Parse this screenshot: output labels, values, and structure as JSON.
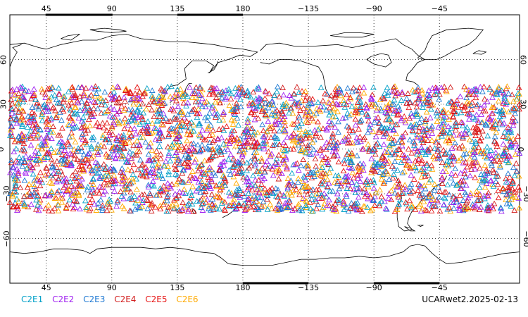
{
  "map": {
    "lon_ticks_top": [
      "45",
      "90",
      "135",
      "180",
      "−135",
      "−90",
      "−45"
    ],
    "lon_ticks_bottom": [
      "45",
      "90",
      "135",
      "180",
      "−135",
      "−90",
      "−45"
    ],
    "lat_ticks": [
      "60",
      "30",
      "0",
      "−30",
      "−60"
    ],
    "lat_tick_values": [
      60,
      30,
      0,
      -30,
      -60
    ],
    "lon_tick_values": [
      45,
      90,
      135,
      180,
      225,
      270,
      315
    ],
    "lon_range": [
      20,
      370
    ],
    "lat_range": [
      -90,
      90
    ],
    "marker": "open-triangle",
    "series": [
      {
        "name": "C2E1",
        "color": "#00a0c8"
      },
      {
        "name": "C2E2",
        "color": "#a020f0"
      },
      {
        "name": "C2E3",
        "color": "#1e78d2"
      },
      {
        "name": "C2E4",
        "color": "#d21e1e"
      },
      {
        "name": "C2E5",
        "color": "#e61414"
      },
      {
        "name": "C2E6",
        "color": "#ffaa00"
      }
    ],
    "point_band_lat": [
      -42,
      42
    ],
    "stamp": "UCARwet2.2025-02-13"
  }
}
